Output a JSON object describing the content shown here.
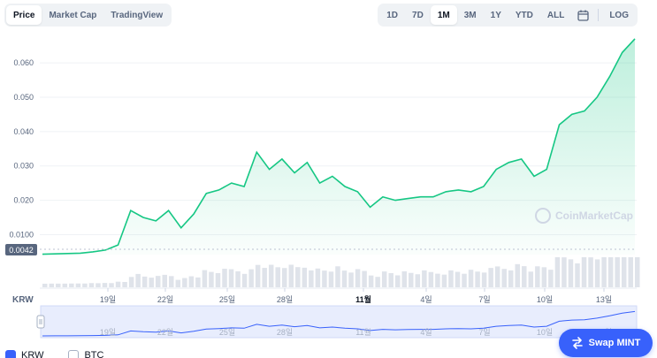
{
  "tabs": [
    "Price",
    "Market Cap",
    "TradingView"
  ],
  "active_tab": "Price",
  "ranges": [
    "1D",
    "7D",
    "1M",
    "3M",
    "1Y",
    "YTD",
    "ALL"
  ],
  "active_range": "1M",
  "log_label": "LOG",
  "calendar_icon": "calendar-icon",
  "y_ticks": [
    "0.060",
    "0.050",
    "0.040",
    "0.030",
    "0.020",
    "0.0100"
  ],
  "baseline_label": "0.0042",
  "x_ticks": [
    "19일",
    "22일",
    "25일",
    "28일",
    "11월",
    "4일",
    "7일",
    "10일",
    "13일"
  ],
  "currency_label": "KRW",
  "watermark": "CoinMarketCap",
  "swap_button": "Swap MINT",
  "legend": [
    {
      "label": "KRW",
      "checked": true
    },
    {
      "label": "BTC",
      "checked": false
    }
  ],
  "colors": {
    "line": "#16c784",
    "accent": "#3861fb",
    "navigator": "#e8edfd"
  },
  "chart_data": {
    "type": "line",
    "x": [
      "10-16",
      "10-17",
      "10-18",
      "10-19",
      "10-20",
      "10-21",
      "10-21",
      "10-22",
      "10-22",
      "10-23",
      "10-23",
      "10-24",
      "10-24",
      "10-25",
      "10-25",
      "10-26",
      "10-26",
      "10-27",
      "10-27",
      "10-28",
      "10-28",
      "10-29",
      "10-29",
      "10-30",
      "10-30",
      "10-31",
      "10-31",
      "11-01",
      "11-01",
      "11-02",
      "11-03",
      "11-04",
      "11-05",
      "11-06",
      "11-07",
      "11-08",
      "11-09",
      "11-09",
      "11-10",
      "11-10",
      "11-11",
      "11-11",
      "11-12",
      "11-12",
      "11-13",
      "11-13",
      "11-14",
      "11-14"
    ],
    "values": [
      0.0043,
      0.0044,
      0.0045,
      0.0046,
      0.005,
      0.0055,
      0.007,
      0.017,
      0.015,
      0.014,
      0.017,
      0.012,
      0.016,
      0.022,
      0.023,
      0.025,
      0.024,
      0.034,
      0.029,
      0.032,
      0.028,
      0.031,
      0.025,
      0.027,
      0.024,
      0.0225,
      0.018,
      0.021,
      0.02,
      0.0205,
      0.021,
      0.021,
      0.0225,
      0.023,
      0.0225,
      0.024,
      0.029,
      0.031,
      0.032,
      0.027,
      0.029,
      0.042,
      0.045,
      0.046,
      0.05,
      0.056,
      0.063,
      0.067
    ],
    "y_ticks": [
      0.01,
      0.02,
      0.03,
      0.04,
      0.05,
      0.06
    ],
    "ylim": [
      0.0042,
      0.068
    ],
    "currency": "KRW",
    "grid": true
  }
}
